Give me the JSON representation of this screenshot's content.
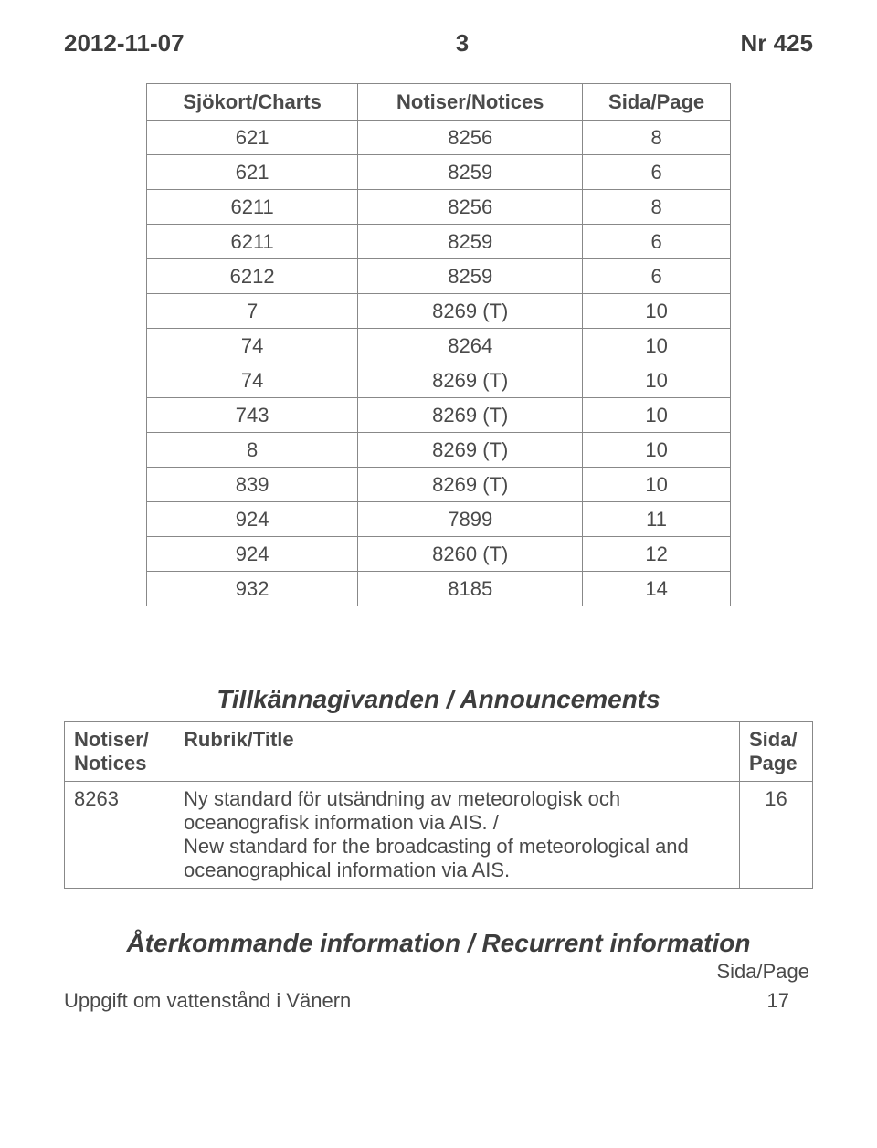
{
  "header": {
    "date": "2012-11-07",
    "page_num": "3",
    "issue": "Nr  425"
  },
  "table1": {
    "columns": [
      "Sjökort/Charts",
      "Notiser/Notices",
      "Sida/Page"
    ],
    "rows": [
      [
        "621",
        "8256",
        "8"
      ],
      [
        "621",
        "8259",
        "6"
      ],
      [
        "6211",
        "8256",
        "8"
      ],
      [
        "6211",
        "8259",
        "6"
      ],
      [
        "6212",
        "8259",
        "6"
      ],
      [
        "7",
        "8269 (T)",
        "10"
      ],
      [
        "74",
        "8264",
        "10"
      ],
      [
        "74",
        "8269 (T)",
        "10"
      ],
      [
        "743",
        "8269 (T)",
        "10"
      ],
      [
        "8",
        "8269 (T)",
        "10"
      ],
      [
        "839",
        "8269 (T)",
        "10"
      ],
      [
        "924",
        "7899",
        "11"
      ],
      [
        "924",
        "8260 (T)",
        "12"
      ],
      [
        "932",
        "8185",
        "14"
      ]
    ]
  },
  "announcements": {
    "title": "Tillkännagivanden / Announcements",
    "columns": [
      "Notiser/\nNotices",
      "Rubrik/Title",
      "Sida/\nPage"
    ],
    "rows": [
      {
        "notice": "8263",
        "title": "Ny standard för utsändning av meteorologisk och oceanografisk information via AIS. /\nNew standard for the broadcasting of meteorological and oceanographical information via AIS.",
        "page": "16"
      }
    ]
  },
  "recurrent": {
    "title": "Återkommande information / Recurrent information",
    "sida_label": "Sida/Page",
    "row_text": "Uppgift om vattenstånd i Vänern",
    "row_page": "17"
  }
}
